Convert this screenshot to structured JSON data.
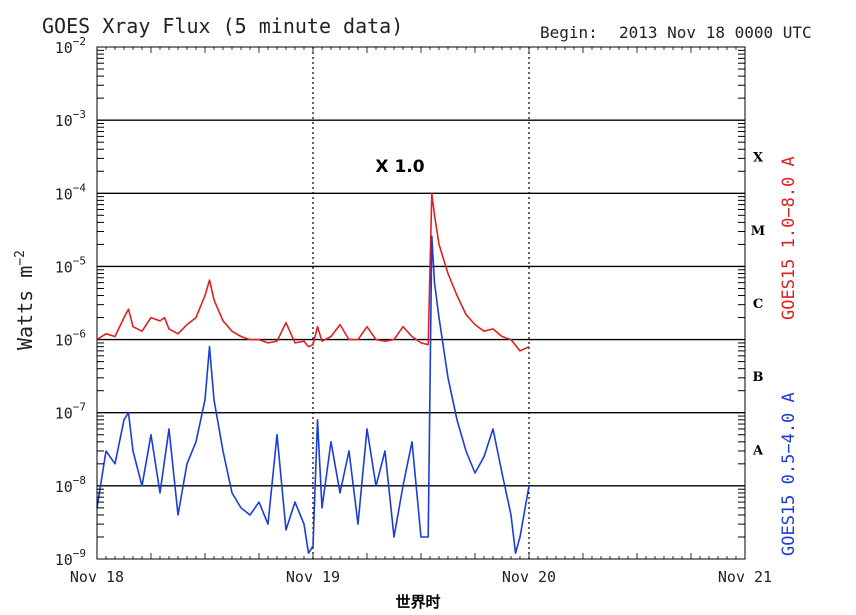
{
  "chart_data": {
    "type": "line",
    "title": "GOES Xray Flux (5 minute data)",
    "begin_label": "Begin:",
    "begin_value": "2013 Nov 18 0000 UTC",
    "ylabel": "Watts m",
    "ylabel_exp": "−2",
    "xlabel": "世界时",
    "annotation": "X 1.0",
    "y_scale": "log",
    "ylim": [
      1e-09,
      0.01
    ],
    "xlim": [
      0,
      72
    ],
    "x_unit": "hours since 2013 Nov 18 0000 UTC",
    "grid": true,
    "y_ticks": [
      {
        "base": "10",
        "exp": "−9",
        "value": 1e-09
      },
      {
        "base": "10",
        "exp": "−8",
        "value": 1e-08
      },
      {
        "base": "10",
        "exp": "−7",
        "value": 1e-07
      },
      {
        "base": "10",
        "exp": "−6",
        "value": 1e-06
      },
      {
        "base": "10",
        "exp": "−5",
        "value": 1e-05
      },
      {
        "base": "10",
        "exp": "−4",
        "value": 0.0001
      },
      {
        "base": "10",
        "exp": "−3",
        "value": 0.001
      },
      {
        "base": "10",
        "exp": "−2",
        "value": 0.01
      }
    ],
    "x_ticks": [
      {
        "label": "Nov 18",
        "value": 0
      },
      {
        "label": "Nov 19",
        "value": 24
      },
      {
        "label": "Nov 20",
        "value": 48
      },
      {
        "label": "Nov 21",
        "value": 72
      }
    ],
    "class_labels": [
      {
        "label": "X",
        "value": 0.000316
      },
      {
        "label": "M",
        "value": 3.16e-05
      },
      {
        "label": "C",
        "value": 3.16e-06
      },
      {
        "label": "B",
        "value": 3.16e-07
      },
      {
        "label": "A",
        "value": 3.16e-08
      }
    ],
    "series": [
      {
        "name": "GOES15 1.0−8.0 A",
        "color": "#e02020",
        "x": [
          0,
          1,
          2,
          3,
          3.5,
          4,
          5,
          6,
          7,
          7.5,
          8,
          9,
          10,
          11,
          12,
          12.5,
          13,
          14,
          15,
          16,
          17,
          18,
          19,
          20,
          21,
          22,
          23,
          23.5,
          24,
          24.5,
          25,
          26,
          27,
          28,
          29,
          30,
          31,
          32,
          33,
          34,
          35,
          36,
          36.8,
          37.2,
          37.5,
          38,
          39,
          40,
          41,
          42,
          43,
          44,
          45,
          46,
          47,
          48
        ],
        "y": [
          1e-06,
          1.2e-06,
          1.1e-06,
          2e-06,
          2.6e-06,
          1.5e-06,
          1.3e-06,
          2e-06,
          1.8e-06,
          2e-06,
          1.4e-06,
          1.2e-06,
          1.6e-06,
          2e-06,
          4e-06,
          6.5e-06,
          3.5e-06,
          1.8e-06,
          1.3e-06,
          1.1e-06,
          1e-06,
          1e-06,
          9e-07,
          9.5e-07,
          1.7e-06,
          9e-07,
          9.5e-07,
          8e-07,
          8.5e-07,
          1.5e-06,
          9.5e-07,
          1.1e-06,
          1.6e-06,
          1e-06,
          1e-06,
          1.5e-06,
          1e-06,
          9.5e-07,
          1e-06,
          1.5e-06,
          1.1e-06,
          9e-07,
          8.5e-07,
          0.0001,
          5e-05,
          2e-05,
          8e-06,
          4e-06,
          2.2e-06,
          1.6e-06,
          1.3e-06,
          1.4e-06,
          1.1e-06,
          1e-06,
          7e-07,
          8e-07
        ]
      },
      {
        "name": "GOES15 0.5−4.0 A",
        "color": "#1a3dd8",
        "x": [
          0,
          1,
          2,
          3,
          3.5,
          4,
          5,
          6,
          7,
          8,
          9,
          10,
          11,
          12,
          12.5,
          13,
          14,
          15,
          16,
          17,
          18,
          19,
          20,
          21,
          22,
          23,
          23.5,
          24,
          24.5,
          25,
          26,
          27,
          28,
          29,
          30,
          31,
          32,
          33,
          34,
          35,
          36,
          36.8,
          37.2,
          37.5,
          38,
          39,
          40,
          41,
          42,
          43,
          44,
          45,
          46,
          46.5,
          47,
          48
        ],
        "y": [
          5e-09,
          3e-08,
          2e-08,
          8e-08,
          1e-07,
          3e-08,
          1e-08,
          5e-08,
          8e-09,
          6e-08,
          4e-09,
          2e-08,
          4e-08,
          1.5e-07,
          8e-07,
          1.5e-07,
          3e-08,
          8e-09,
          5e-09,
          4e-09,
          6e-09,
          3e-09,
          5e-08,
          2.5e-09,
          6e-09,
          3e-09,
          1.2e-09,
          1.5e-09,
          8e-08,
          5e-09,
          4e-08,
          8e-09,
          3e-08,
          3e-09,
          6e-08,
          1e-08,
          3e-08,
          2e-09,
          1e-08,
          4e-08,
          2e-09,
          2e-09,
          2.6e-05,
          6e-06,
          2e-06,
          3e-07,
          8e-08,
          3e-08,
          1.5e-08,
          2.5e-08,
          6e-08,
          1.5e-08,
          4e-09,
          1.2e-09,
          2e-09,
          1e-08
        ]
      }
    ]
  }
}
